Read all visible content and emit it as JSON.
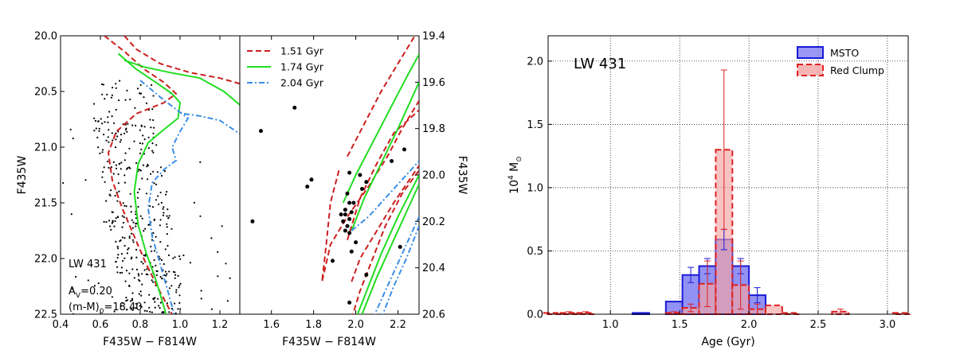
{
  "chart_data": [
    {
      "type": "scatter",
      "panel": "cmd-full",
      "xlabel": "F435W − F814W",
      "ylabel": "F435W",
      "xlim": [
        0.4,
        1.3
      ],
      "ylim": [
        22.5,
        20.0
      ],
      "xticks": [
        "0.4",
        "0.6",
        "0.8",
        "1.0",
        "1.2"
      ],
      "yticks": [
        "20.0",
        "20.5",
        "21.0",
        "21.5",
        "22.0",
        "22.5"
      ],
      "annotations": {
        "cluster": "LW 431",
        "extinction_prefix": "A",
        "extinction_sub": "V",
        "extinction_value": "=0.20",
        "distance_prefix": "(m-M)",
        "distance_sub": "0",
        "distance_value": "=18.40"
      },
      "isochrones": [
        {
          "age": "1.51",
          "color": "#cc1f1f",
          "style": "dashed",
          "points": [
            [
              0.62,
              20.0
            ],
            [
              0.72,
              20.14
            ],
            [
              0.82,
              20.3
            ],
            [
              0.92,
              20.42
            ],
            [
              0.98,
              20.52
            ],
            [
              0.92,
              20.6
            ],
            [
              0.78,
              20.7
            ],
            [
              0.68,
              20.86
            ],
            [
              0.64,
              21.05
            ],
            [
              0.66,
              21.3
            ],
            [
              0.71,
              21.55
            ],
            [
              0.77,
              21.8
            ],
            [
              0.83,
              22.05
            ],
            [
              0.9,
              22.3
            ],
            [
              0.96,
              22.5
            ]
          ]
        },
        {
          "age": "1.51 (giant)",
          "color": "#cc1f1f",
          "style": "dashed",
          "points": [
            [
              0.72,
              20.0
            ],
            [
              0.78,
              20.12
            ],
            [
              0.9,
              20.25
            ],
            [
              1.05,
              20.33
            ],
            [
              1.2,
              20.38
            ],
            [
              1.3,
              20.43
            ]
          ]
        },
        {
          "age": "1.74",
          "color": "#22dd22",
          "style": "solid",
          "points": [
            [
              0.69,
              20.16
            ],
            [
              0.78,
              20.3
            ],
            [
              0.88,
              20.42
            ],
            [
              0.96,
              20.52
            ],
            [
              1.0,
              20.6
            ],
            [
              0.99,
              20.74
            ],
            [
              0.92,
              20.84
            ],
            [
              0.84,
              20.96
            ],
            [
              0.79,
              21.15
            ],
            [
              0.77,
              21.4
            ],
            [
              0.79,
              21.7
            ],
            [
              0.83,
              21.95
            ],
            [
              0.88,
              22.2
            ],
            [
              0.93,
              22.5
            ]
          ]
        },
        {
          "age": "1.74 (giant)",
          "color": "#22dd22",
          "style": "solid",
          "points": [
            [
              0.72,
              20.22
            ],
            [
              0.82,
              20.28
            ],
            [
              0.95,
              20.33
            ],
            [
              1.1,
              20.38
            ],
            [
              1.22,
              20.5
            ],
            [
              1.3,
              20.62
            ]
          ]
        },
        {
          "age": "2.04",
          "color": "#3a8ee6",
          "style": "dashdot",
          "points": [
            [
              0.8,
              20.4
            ],
            [
              0.9,
              20.55
            ],
            [
              0.98,
              20.66
            ],
            [
              1.04,
              20.74
            ],
            [
              1.0,
              20.86
            ],
            [
              0.96,
              21.0
            ],
            [
              0.98,
              21.12
            ],
            [
              0.92,
              21.2
            ],
            [
              0.86,
              21.32
            ],
            [
              0.84,
              21.55
            ],
            [
              0.86,
              21.8
            ],
            [
              0.9,
              22.05
            ],
            [
              0.94,
              22.3
            ],
            [
              0.97,
              22.5
            ]
          ]
        },
        {
          "age": "2.04 (giant)",
          "color": "#3a8ee6",
          "style": "dashdot",
          "points": [
            [
              1.02,
              20.7
            ],
            [
              1.1,
              20.72
            ],
            [
              1.2,
              20.76
            ],
            [
              1.3,
              20.88
            ]
          ]
        }
      ]
    },
    {
      "type": "scatter",
      "panel": "cmd-zoom",
      "xlabel": "F435W − F814W",
      "ylabel": "F435W",
      "xlim": [
        1.45,
        2.3
      ],
      "ylim": [
        20.6,
        19.4
      ],
      "xticks": [
        "1.6",
        "1.8",
        "2.0",
        "2.2"
      ],
      "yticks": [
        "19.4",
        "19.6",
        "19.8",
        "20.0",
        "20.2",
        "20.4",
        "20.6"
      ],
      "legend": {
        "position": "top-left",
        "entries": [
          {
            "label": "1.51 Gyr",
            "color": "#cc1f1f",
            "style": "dashed"
          },
          {
            "label": "1.74 Gyr",
            "color": "#22dd22",
            "style": "solid"
          },
          {
            "label": "2.04 Gyr",
            "color": "#3a8ee6",
            "style": "dashdot"
          }
        ]
      },
      "stars": [
        [
          1.71,
          19.71
        ],
        [
          1.55,
          19.81
        ],
        [
          1.77,
          20.05
        ],
        [
          1.79,
          20.02
        ],
        [
          1.51,
          20.2
        ],
        [
          1.97,
          19.99
        ],
        [
          1.96,
          20.08
        ],
        [
          1.97,
          20.12
        ],
        [
          1.95,
          20.15
        ],
        [
          1.93,
          20.17
        ],
        [
          1.95,
          20.17
        ],
        [
          1.97,
          20.19
        ],
        [
          1.94,
          20.2
        ],
        [
          1.96,
          20.22
        ],
        [
          1.95,
          20.24
        ],
        [
          1.97,
          20.25
        ],
        [
          1.98,
          20.16
        ],
        [
          1.99,
          20.12
        ],
        [
          2.02,
          20.0
        ],
        [
          2.03,
          20.06
        ],
        [
          2.05,
          20.03
        ],
        [
          1.98,
          20.33
        ],
        [
          2.0,
          20.29
        ],
        [
          1.89,
          20.37
        ],
        [
          2.05,
          20.43
        ],
        [
          1.97,
          20.55
        ],
        [
          2.21,
          20.31
        ],
        [
          2.17,
          19.94
        ],
        [
          2.23,
          19.89
        ]
      ]
    },
    {
      "type": "bar",
      "panel": "age-histogram",
      "title": "LW 431",
      "xlabel": "Age (Gyr)",
      "ylabel_prefix": "10",
      "ylabel_sup": "4",
      "ylabel_mid": " M",
      "ylabel_sub": "⊙",
      "xlim": [
        0.55,
        3.15
      ],
      "ylim": [
        0,
        2.2
      ],
      "xticks": [
        "1.0",
        "1.5",
        "2.0",
        "2.5",
        "3.0"
      ],
      "yticks": [
        "0.0",
        "0.5",
        "1.0",
        "1.5",
        "2.0"
      ],
      "grid": true,
      "bin_width": 0.12,
      "legend": {
        "position": "top-right"
      },
      "series": [
        {
          "name": "MSTO",
          "fill": "#7f7ff2",
          "edge": "#1a1ad6",
          "style": "solid",
          "bins": [
            {
              "x": 1.22,
              "y": 0.01,
              "err": 0.0
            },
            {
              "x": 1.46,
              "y": 0.1,
              "err": 0.0
            },
            {
              "x": 1.58,
              "y": 0.31,
              "err": 0.06
            },
            {
              "x": 1.7,
              "y": 0.38,
              "err": 0.06
            },
            {
              "x": 1.82,
              "y": 0.59,
              "err": 0.08
            },
            {
              "x": 1.94,
              "y": 0.38,
              "err": 0.06
            },
            {
              "x": 2.06,
              "y": 0.15,
              "err": 0.06
            }
          ]
        },
        {
          "name": "Red Clump",
          "fill": "#f4a3a3",
          "edge": "#e02020",
          "style": "dashed",
          "bins": [
            {
              "x": 0.58,
              "y": 0.01,
              "err": 0.0
            },
            {
              "x": 0.7,
              "y": 0.01,
              "err": 0.01
            },
            {
              "x": 0.82,
              "y": 0.01,
              "err": 0.01
            },
            {
              "x": 1.46,
              "y": 0.01,
              "err": 0.01
            },
            {
              "x": 1.58,
              "y": 0.05,
              "err": 0.03
            },
            {
              "x": 1.7,
              "y": 0.24,
              "err": 0.18
            },
            {
              "x": 1.82,
              "y": 1.3,
              "err": 0.63
            },
            {
              "x": 1.94,
              "y": 0.23,
              "err": 0.19
            },
            {
              "x": 2.06,
              "y": 0.04,
              "err": 0.04
            },
            {
              "x": 2.18,
              "y": 0.07,
              "err": 0.0
            },
            {
              "x": 2.3,
              "y": 0.01,
              "err": 0.0
            },
            {
              "x": 2.66,
              "y": 0.02,
              "err": 0.02
            },
            {
              "x": 3.1,
              "y": 0.01,
              "err": 0.0
            }
          ]
        }
      ]
    }
  ]
}
